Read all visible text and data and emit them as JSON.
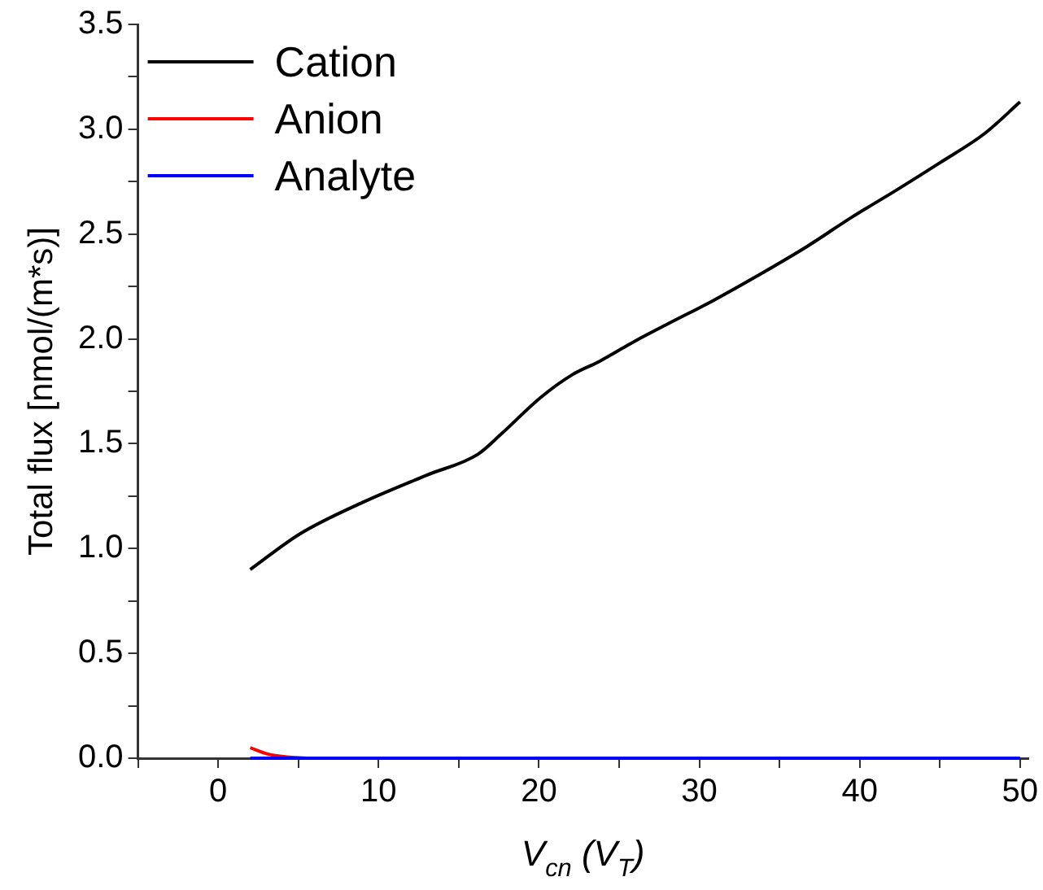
{
  "chart_data": {
    "type": "line",
    "xlabel": "V$_{cn}$ (V$_{T}$)",
    "ylabel": "Total flux [nmol/(m*s)]",
    "xlim": [
      -5,
      50.5
    ],
    "ylim": [
      0,
      3.5
    ],
    "xticks": [
      {
        "value": -5,
        "label": null
      },
      0,
      {
        "value": 5,
        "label": null
      },
      10,
      {
        "value": 15,
        "label": null
      },
      20,
      {
        "value": 25,
        "label": null
      },
      30,
      {
        "value": 35,
        "label": null
      },
      40,
      {
        "value": 45,
        "label": null
      },
      50
    ],
    "yticks": [
      {
        "value": 0,
        "label": "0.0"
      },
      {
        "value": 0.25,
        "label": null
      },
      {
        "value": 0.5,
        "label": "0.5"
      },
      {
        "value": 0.75,
        "label": null
      },
      {
        "value": 1,
        "label": "1.0"
      },
      {
        "value": 1.25,
        "label": null
      },
      {
        "value": 1.5,
        "label": "1.5"
      },
      {
        "value": 1.75,
        "label": null
      },
      {
        "value": 2,
        "label": "2.0"
      },
      {
        "value": 2.25,
        "label": null
      },
      {
        "value": 2.5,
        "label": "2.5"
      },
      {
        "value": 2.75,
        "label": null
      },
      {
        "value": 3,
        "label": "3.0"
      },
      {
        "value": 3.25,
        "label": null
      },
      {
        "value": 3.5,
        "label": "3.5"
      }
    ],
    "grid": false,
    "legend": "top left",
    "marker": "none",
    "line_style": "solid",
    "series": [
      {
        "name": "Cation",
        "color": "#000000",
        "x": [
          2,
          5.1,
          9,
          13,
          16.2,
          17.7,
          20.1,
          22.1,
          23.7,
          26,
          28,
          30.8,
          33.6,
          36.7,
          39.5,
          42.3,
          45,
          47.8,
          50
        ],
        "values": [
          0.9,
          1.07,
          1.22,
          1.35,
          1.45,
          1.55,
          1.72,
          1.83,
          1.89,
          1.99,
          2.07,
          2.18,
          2.3,
          2.44,
          2.58,
          2.71,
          2.84,
          2.98,
          3.13
        ]
      },
      {
        "name": "Anion",
        "color": "#ff0000",
        "x": [
          2,
          3.1,
          4.3,
          5.5
        ],
        "values": [
          0.05,
          0.02,
          0.006,
          0
        ]
      },
      {
        "name": "Analyte",
        "color": "#0000ff",
        "x": [
          2,
          50
        ],
        "values": [
          0,
          0
        ]
      }
    ]
  }
}
